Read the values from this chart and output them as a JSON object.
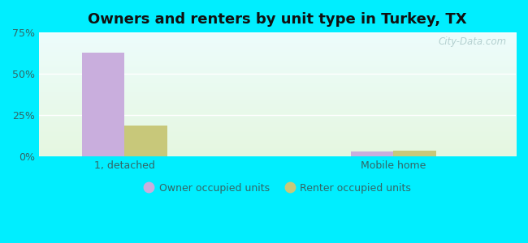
{
  "title": "Owners and renters by unit type in Turkey, TX",
  "categories": [
    "1, detached",
    "Mobile home"
  ],
  "owner_values": [
    63.0,
    3.0
  ],
  "renter_values": [
    19.0,
    3.5
  ],
  "owner_color": "#c9aedd",
  "renter_color": "#c8c87a",
  "bg_color": "#00eeff",
  "ylim": [
    0,
    75
  ],
  "yticks": [
    0,
    25,
    50,
    75
  ],
  "ytick_labels": [
    "0%",
    "25%",
    "50%",
    "75%"
  ],
  "legend_owner": "Owner occupied units",
  "legend_renter": "Renter occupied units",
  "bar_width": 0.35,
  "group_positions": [
    1.0,
    3.2
  ],
  "xlim": [
    0.3,
    4.2
  ],
  "watermark": "City-Data.com"
}
